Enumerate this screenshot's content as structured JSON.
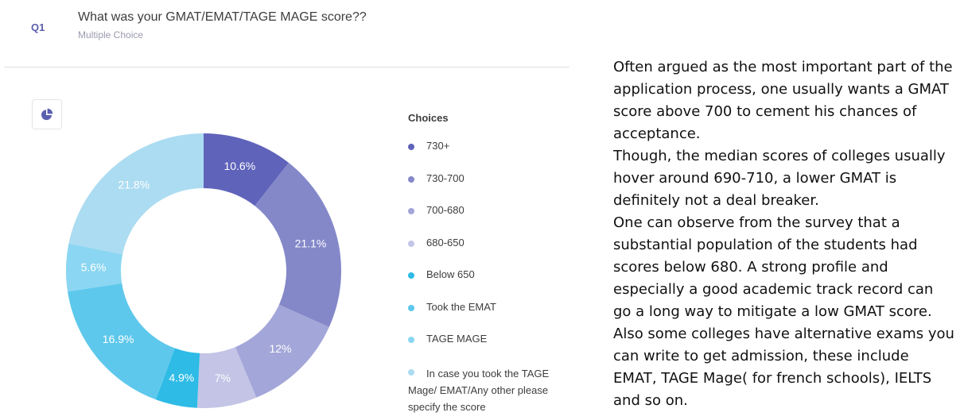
{
  "question": {
    "number": "Q1",
    "title": "What was your GMAT/EMAT/TAGE MAGE score??",
    "type": "Multiple Choice"
  },
  "chart_toggle": {
    "icon": "pie-chart-icon"
  },
  "legend": {
    "title": "Choices",
    "items": [
      {
        "label": "730+",
        "color": "#5f63ba"
      },
      {
        "label": "730-700",
        "color": "#8488c9"
      },
      {
        "label": "700-680",
        "color": "#a3a6d8"
      },
      {
        "label": "680-650",
        "color": "#c3c4e6"
      },
      {
        "label": "Below 650",
        "color": "#2ebbe6"
      },
      {
        "label": "Took the EMAT",
        "color": "#5ec8ec"
      },
      {
        "label": "TAGE MAGE",
        "color": "#8bd6f2"
      },
      {
        "label": "In case you took the TAGE Mage/ EMAT/Any other please specify the score",
        "color": "#acdcf1"
      }
    ]
  },
  "chart_data": {
    "type": "pie",
    "donut": true,
    "title": "What was your GMAT/EMAT/TAGE MAGE score??",
    "categories": [
      "730+",
      "730-700",
      "700-680",
      "680-650",
      "Below 650",
      "Took the EMAT",
      "TAGE MAGE",
      "In case you took the TAGE Mage/ EMAT/Any other please specify the score"
    ],
    "values": [
      10.6,
      21.1,
      12,
      7,
      4.9,
      16.9,
      5.6,
      21.8
    ],
    "labels": [
      "10.6%",
      "21.1%",
      "12%",
      "7%",
      "4.9%",
      "16.9%",
      "5.6%",
      "21.8%"
    ],
    "colors": [
      "#5f63ba",
      "#8488c9",
      "#a3a6d8",
      "#c3c4e6",
      "#2ebbe6",
      "#5ec8ec",
      "#8bd6f2",
      "#acdcf1"
    ],
    "legend_position": "right",
    "legend_title": "Choices"
  },
  "commentary": {
    "paragraphs": [
      "Often argued as the most important part of the application process, one usually wants a GMAT score above 700 to cement his chances of acceptance.",
      "Though, the median scores of colleges usually hover around 690-710, a lower GMAT is definitely not a deal breaker.",
      "One can observe from the survey that a substantial population of the students had scores below 680.  A strong profile and especially a good academic track record can go a long way to mitigate a low GMAT score.",
      "Also some colleges have alternative exams you can write to get admission, these include EMAT, TAGE Mage( for french schools), IELTS and so on."
    ]
  }
}
